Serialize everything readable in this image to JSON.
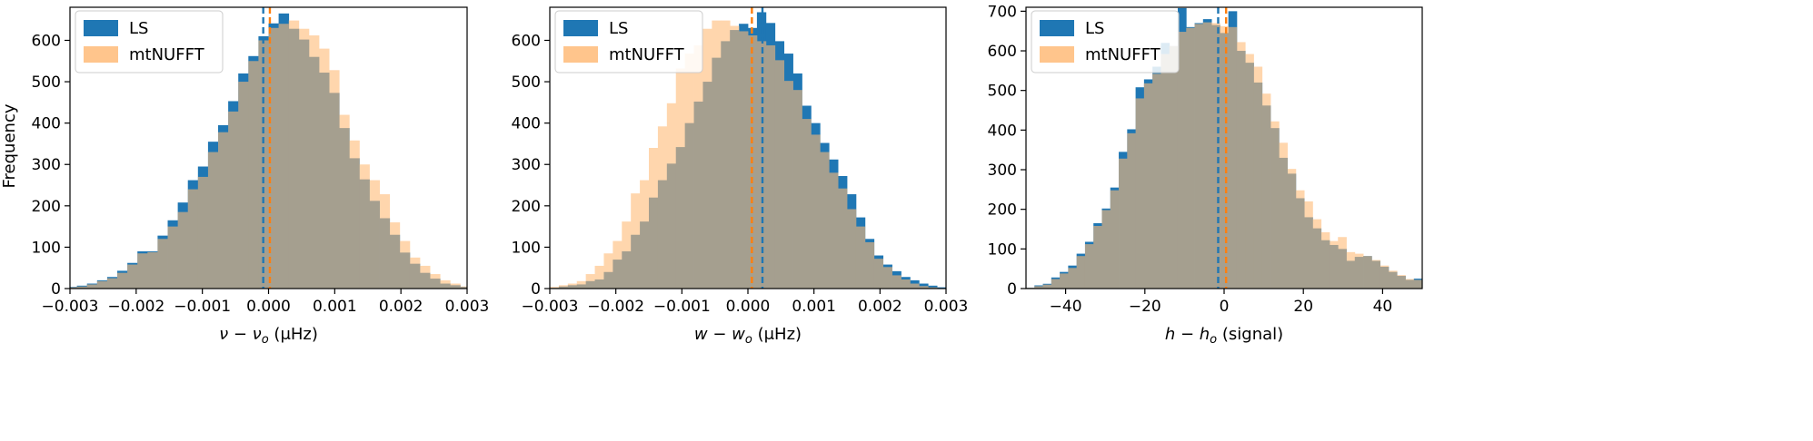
{
  "figure": {
    "ylabel": "Frequency"
  },
  "chart_data": [
    {
      "type": "bar",
      "subtype": "histogram",
      "xlabel": "ν − ν",
      "xlabel_sub": "o",
      "xlabel_unit": " (μHz)",
      "xlim": [
        -0.003,
        0.003
      ],
      "ylim": [
        0,
        680
      ],
      "xticks": [
        -0.003,
        -0.002,
        -0.001,
        0.0,
        0.001,
        0.002,
        0.003
      ],
      "xtick_labels": [
        "−0.003",
        "−0.002",
        "−0.001",
        "0.000",
        "0.001",
        "0.002",
        "0.003"
      ],
      "yticks": [
        0,
        100,
        200,
        300,
        400,
        500,
        600
      ],
      "bin_edges_range": [
        -0.0032,
        0.0032
      ],
      "series": [
        {
          "name": "LS",
          "color": "#1f77b4",
          "median": -8e-05,
          "values": [
            2,
            4,
            7,
            12,
            20,
            28,
            43,
            62,
            90,
            90,
            128,
            165,
            208,
            262,
            295,
            355,
            395,
            453,
            520,
            562,
            610,
            641,
            665,
            628,
            602,
            560,
            522,
            473,
            388,
            315,
            264,
            212,
            170,
            130,
            87,
            60,
            38,
            24,
            12,
            8,
            4,
            2
          ]
        },
        {
          "name": "mtNUFFT",
          "color": "#ffbb78",
          "median": 2e-05,
          "values": [
            2,
            3,
            5,
            10,
            18,
            25,
            38,
            58,
            85,
            88,
            120,
            150,
            185,
            240,
            270,
            330,
            378,
            428,
            500,
            550,
            600,
            630,
            640,
            648,
            628,
            612,
            580,
            528,
            420,
            358,
            300,
            262,
            228,
            160,
            115,
            75,
            55,
            35,
            20,
            12,
            5,
            2
          ]
        }
      ]
    },
    {
      "type": "bar",
      "subtype": "histogram",
      "xlabel": "w − w",
      "xlabel_sub": "o",
      "xlabel_unit": " (μHz)",
      "xlim": [
        -0.003,
        0.003
      ],
      "ylim": [
        0,
        680
      ],
      "xticks": [
        -0.003,
        -0.002,
        -0.001,
        0.0,
        0.001,
        0.002,
        0.003
      ],
      "xtick_labels": [
        "−0.003",
        "−0.002",
        "−0.001",
        "0.000",
        "0.001",
        "0.002",
        "0.003"
      ],
      "yticks": [
        0,
        100,
        200,
        300,
        400,
        500,
        600
      ],
      "bin_edges_range": [
        -0.003,
        0.003
      ],
      "series": [
        {
          "name": "LS",
          "color": "#1f77b4",
          "median": 0.00022,
          "values": [
            2,
            5,
            8,
            10,
            18,
            22,
            40,
            70,
            90,
            130,
            162,
            220,
            262,
            302,
            342,
            400,
            452,
            500,
            558,
            598,
            625,
            640,
            630,
            668,
            642,
            598,
            568,
            520,
            442,
            400,
            352,
            312,
            272,
            228,
            172,
            120,
            80,
            58,
            42,
            28,
            20,
            12,
            7,
            3
          ]
        },
        {
          "name": "mtNUFFT",
          "color": "#ffbb78",
          "median": 6e-05,
          "values": [
            4,
            8,
            12,
            18,
            35,
            55,
            85,
            115,
            162,
            230,
            262,
            340,
            392,
            448,
            532,
            568,
            588,
            628,
            648,
            648,
            635,
            622,
            612,
            598,
            588,
            552,
            502,
            480,
            410,
            372,
            330,
            280,
            242,
            192,
            150,
            112,
            72,
            52,
            32,
            22,
            12,
            6,
            3,
            1
          ]
        }
      ]
    },
    {
      "type": "bar",
      "subtype": "histogram",
      "xlabel": "h − h",
      "xlabel_sub": "o",
      "xlabel_unit": " (signal)",
      "xlim": [
        -50,
        50
      ],
      "ylim": [
        0,
        710
      ],
      "xticks": [
        -40,
        -20,
        0,
        20,
        40
      ],
      "xtick_labels": [
        "−40",
        "−20",
        "0",
        "20",
        "40"
      ],
      "yticks": [
        0,
        100,
        200,
        300,
        400,
        500,
        600,
        700
      ],
      "bin_edges_range": [
        -50,
        50
      ],
      "series": [
        {
          "name": "LS",
          "color": "#1f77b4",
          "median": -1.5,
          "values": [
            2,
            8,
            12,
            28,
            42,
            58,
            88,
            118,
            165,
            202,
            255,
            345,
            402,
            508,
            528,
            560,
            620,
            612,
            708,
            660,
            670,
            680,
            665,
            645,
            700,
            600,
            570,
            520,
            462,
            405,
            330,
            290,
            228,
            180,
            152,
            122,
            110,
            100,
            70,
            80,
            82,
            70,
            55,
            42,
            32,
            22,
            25
          ]
        },
        {
          "name": "mtNUFFT",
          "color": "#ffbb78",
          "median": 0.5,
          "values": [
            2,
            6,
            10,
            24,
            38,
            52,
            82,
            112,
            158,
            198,
            248,
            328,
            392,
            480,
            518,
            542,
            592,
            612,
            648,
            658,
            668,
            672,
            670,
            662,
            660,
            622,
            592,
            560,
            492,
            422,
            368,
            302,
            248,
            220,
            175,
            142,
            120,
            130,
            92,
            88,
            82,
            72,
            58,
            45,
            34,
            24,
            22
          ]
        }
      ]
    }
  ]
}
